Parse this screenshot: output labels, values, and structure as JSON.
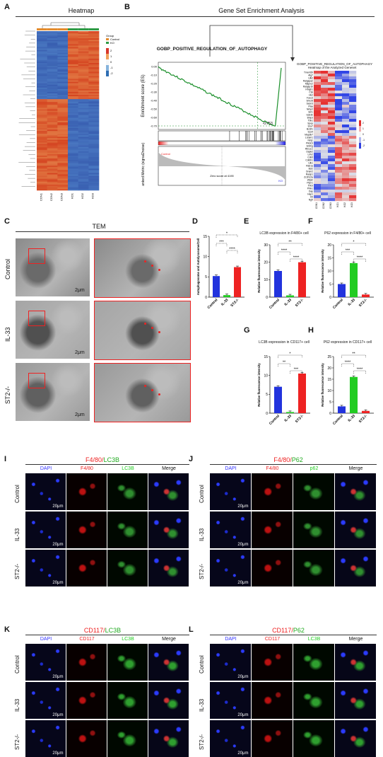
{
  "panels": {
    "A": {
      "label": "A",
      "title": "Heatmap",
      "legend_title": "Group",
      "legend_items": [
        "Control",
        "KO"
      ],
      "scale": [
        "2",
        "1",
        "0",
        "-1",
        "-2"
      ],
      "columns": [
        "CON1",
        "CON2",
        "CON3",
        "KO1",
        "KO2",
        "KO3"
      ]
    },
    "B": {
      "label": "B",
      "title": "Gene Set Enrichment Analysis",
      "gsea_title": "GOBP_POSITIVE_REGULATION_OF_AUTOPHAGY",
      "es_axis": "Enrichment score (ES)",
      "rm_axis": "Ranked Metric (signal2noise)",
      "es_ticks": [
        "0.00",
        "-0.10",
        "-0.20",
        "-0.30",
        "-0.40",
        "-0.50",
        "-0.60",
        "-0.70"
      ],
      "peak_value": "-0.753",
      "control_tag": "Control",
      "ko_tag": "KO",
      "zero_cross": "Zero score at 4190",
      "heat_title": "GOBP_POSITIVE_REGULATION_OF_AUTOPHAGY Heatmap of the Analyzed Geneset",
      "genes": [
        "Tmem59",
        "Atg7",
        "Ulk2",
        "Ralgapa2",
        "Mapre2",
        "Ralgap1b",
        "Hmgb1",
        "Ctsl",
        "Hk2",
        "Foxo3",
        "Smcr8",
        "Sesn3",
        "Plaa",
        "Nrbp2",
        "Sirt1",
        "Gsk3b",
        "Bnip3",
        "Tbk1",
        "Spop",
        "Snx7",
        "Bcl2l1",
        "Sox4",
        "Map3k7",
        "Lrsam1",
        "Ninj1",
        "Pik3c3",
        "Smfng",
        "Rb1cc1",
        "Dapk2",
        "Lrrk2",
        "Cdk5",
        "Cdk5r1",
        "Ulk1",
        "Rab1a",
        "Bcl2",
        "Dram2",
        "Rasip1",
        "Zc3h12a",
        "Wipi2",
        "Ptpn1",
        "Trib3",
        "Pink1",
        "Dap",
        "Hap1",
        "Kit",
        "Ngfr"
      ],
      "columns": [
        "CON1",
        "CON2",
        "CON3",
        "KO1",
        "KO2",
        "KO3"
      ],
      "scale": [
        "2",
        "1",
        "0",
        "-1",
        "-2"
      ]
    },
    "C": {
      "label": "C",
      "title": "TEM",
      "rows": [
        "Control",
        "IL-33",
        "ST2-/-"
      ],
      "scale_bar": "2μm"
    },
    "D": {
      "label": "D",
      "ylabel": "Autophagosome and Autolysosome/Cell",
      "groups": [
        "Control",
        "IL-33",
        "ST2-/-"
      ],
      "sig": [
        "*",
        "***",
        "****"
      ]
    },
    "E": {
      "label": "E",
      "title": "LC3B expression in F4/80+ cell",
      "ylabel": "Relative fluorescence intensity",
      "groups": [
        "Control",
        "IL-33",
        "ST2-/-"
      ],
      "sig": [
        "**",
        "****",
        "****"
      ]
    },
    "F": {
      "label": "F",
      "title": "P62 expression in F4/80+ cell",
      "ylabel": "Relative fluorescence intensity",
      "groups": [
        "Control",
        "IL-33",
        "ST2-/-"
      ],
      "sig": [
        "*",
        "***",
        "****"
      ]
    },
    "G": {
      "label": "G",
      "title": "LC3B expression in CD117+ cell",
      "ylabel": "Relative fluorescence intensity",
      "groups": [
        "Control",
        "IL-33",
        "ST2-/-"
      ],
      "sig": [
        "*",
        "**",
        "***"
      ]
    },
    "H": {
      "label": "H",
      "title": "P62 expression in CD117+ cell",
      "ylabel": "Relative fluorescence intensity",
      "groups": [
        "Control",
        "IL-33",
        "ST2-/-"
      ],
      "sig": [
        "**",
        "****",
        "****"
      ]
    },
    "I": {
      "label": "I",
      "marker": "F4/80",
      "marker2": "LC3B",
      "cols": [
        "DAPI",
        "F4/80",
        "LC3B",
        "Merge"
      ],
      "rows": [
        "Control",
        "IL-33",
        "ST2-/-"
      ],
      "scale_bar": "20μm"
    },
    "J": {
      "label": "J",
      "marker": "F4/80",
      "marker2": "P62",
      "cols": [
        "DAPI",
        "F4/80",
        "p62",
        "Merge"
      ],
      "rows": [
        "Control",
        "IL-33",
        "ST2-/-"
      ],
      "scale_bar": "20μm"
    },
    "K": {
      "label": "K",
      "marker": "CD117",
      "marker2": "LC3B",
      "cols": [
        "DAPI",
        "CD117",
        "LC3B",
        "Merge"
      ],
      "rows": [
        "Control",
        "IL-33",
        "ST2-/-"
      ],
      "scale_bar": "20μm"
    },
    "L": {
      "label": "L",
      "marker": "CD117",
      "marker2": "P62",
      "cols": [
        "DAPI",
        "CD117",
        "LC3B",
        "Merge"
      ],
      "rows": [
        "Control",
        "IL-33",
        "ST2-/-"
      ],
      "scale_bar": "20μm"
    }
  },
  "chart_data": [
    {
      "panel": "D",
      "type": "bar",
      "categories": [
        "Control",
        "IL-33",
        "ST2-/-"
      ],
      "values": [
        5.2,
        0.5,
        7.4
      ],
      "colors": [
        "#2233dd",
        "#22cc22",
        "#ee2222"
      ],
      "ylim": [
        0,
        15
      ],
      "ticks": [
        "0",
        "5",
        "10",
        "15"
      ],
      "ylabel": "Autophagosome and Autolysosome/Cell"
    },
    {
      "panel": "E",
      "type": "bar",
      "categories": [
        "Control",
        "IL-33",
        "ST2-/-"
      ],
      "values": [
        15,
        1,
        20
      ],
      "colors": [
        "#2233dd",
        "#22cc22",
        "#ee2222"
      ],
      "ylim": [
        0,
        30
      ],
      "ticks": [
        "0",
        "10",
        "20",
        "30"
      ],
      "title": "LC3B expression in F4/80+ cell",
      "ylabel": "Relative fluorescence intensity"
    },
    {
      "panel": "F",
      "type": "bar",
      "categories": [
        "Control",
        "IL-33",
        "ST2-/-"
      ],
      "values": [
        5,
        13,
        1
      ],
      "colors": [
        "#2233dd",
        "#22cc22",
        "#ee2222"
      ],
      "ylim": [
        0,
        20
      ],
      "ticks": [
        "0",
        "5",
        "10",
        "15",
        "20"
      ],
      "title": "P62 expression in F4/80+ cell",
      "ylabel": "Relative fluorescence intensity"
    },
    {
      "panel": "G",
      "type": "bar",
      "categories": [
        "Control",
        "IL-33",
        "ST2-/-"
      ],
      "values": [
        7,
        0.3,
        10.5
      ],
      "colors": [
        "#2233dd",
        "#22cc22",
        "#ee2222"
      ],
      "ylim": [
        0,
        15
      ],
      "ticks": [
        "0",
        "5",
        "10",
        "15"
      ],
      "title": "LC3B expression in CD117+ cell",
      "ylabel": "Relative fluorescence intensity"
    },
    {
      "panel": "H",
      "type": "bar",
      "categories": [
        "Control",
        "IL-33",
        "ST2-/-"
      ],
      "values": [
        3,
        16,
        1
      ],
      "colors": [
        "#2233dd",
        "#22cc22",
        "#ee2222"
      ],
      "ylim": [
        0,
        25
      ],
      "ticks": [
        "0",
        "5",
        "10",
        "15",
        "20",
        "25"
      ],
      "title": "P62 expression in CD117+ cell",
      "ylabel": "Relative fluorescence intensity"
    }
  ]
}
